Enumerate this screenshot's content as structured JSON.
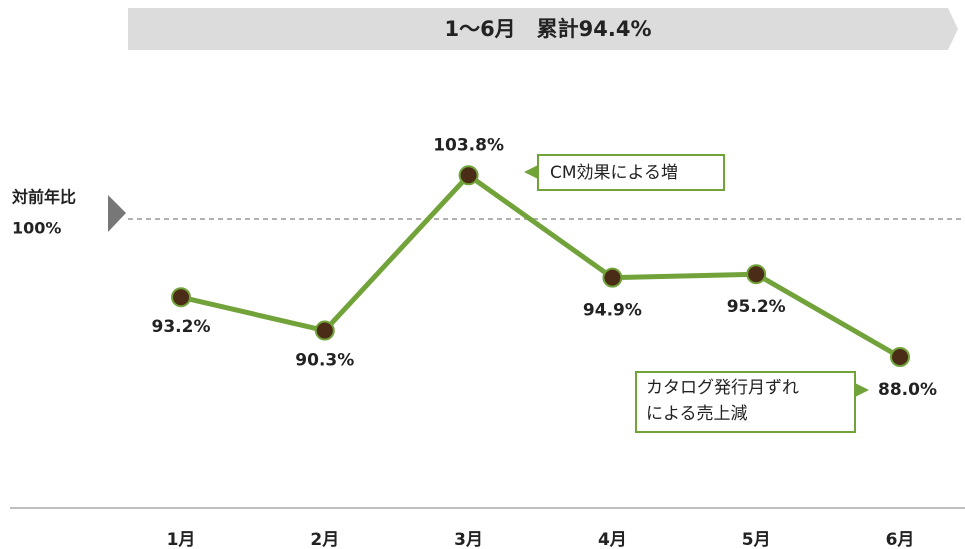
{
  "chart_data": {
    "type": "line",
    "title": "1～6月　累計94.4%",
    "categories": [
      "1月",
      "2月",
      "3月",
      "4月",
      "5月",
      "6月"
    ],
    "series": [
      {
        "name": "対前年比",
        "color": "#72a33a",
        "marker_color": "#4a2c17",
        "values": [
          93.2,
          90.3,
          103.8,
          94.9,
          95.2,
          88.0
        ],
        "value_labels": [
          "93.2%",
          "90.3%",
          "103.8%",
          "94.9%",
          "95.2%",
          "88.0%"
        ]
      }
    ],
    "ylim": [
      80,
      110
    ],
    "reference_line": {
      "name": "対前年比",
      "value": 100,
      "label": "100%"
    },
    "annotations": [
      {
        "lines": [
          "CM効果による増"
        ]
      },
      {
        "lines": [
          "カタログ発行月ずれ",
          "による売上減"
        ]
      }
    ]
  }
}
